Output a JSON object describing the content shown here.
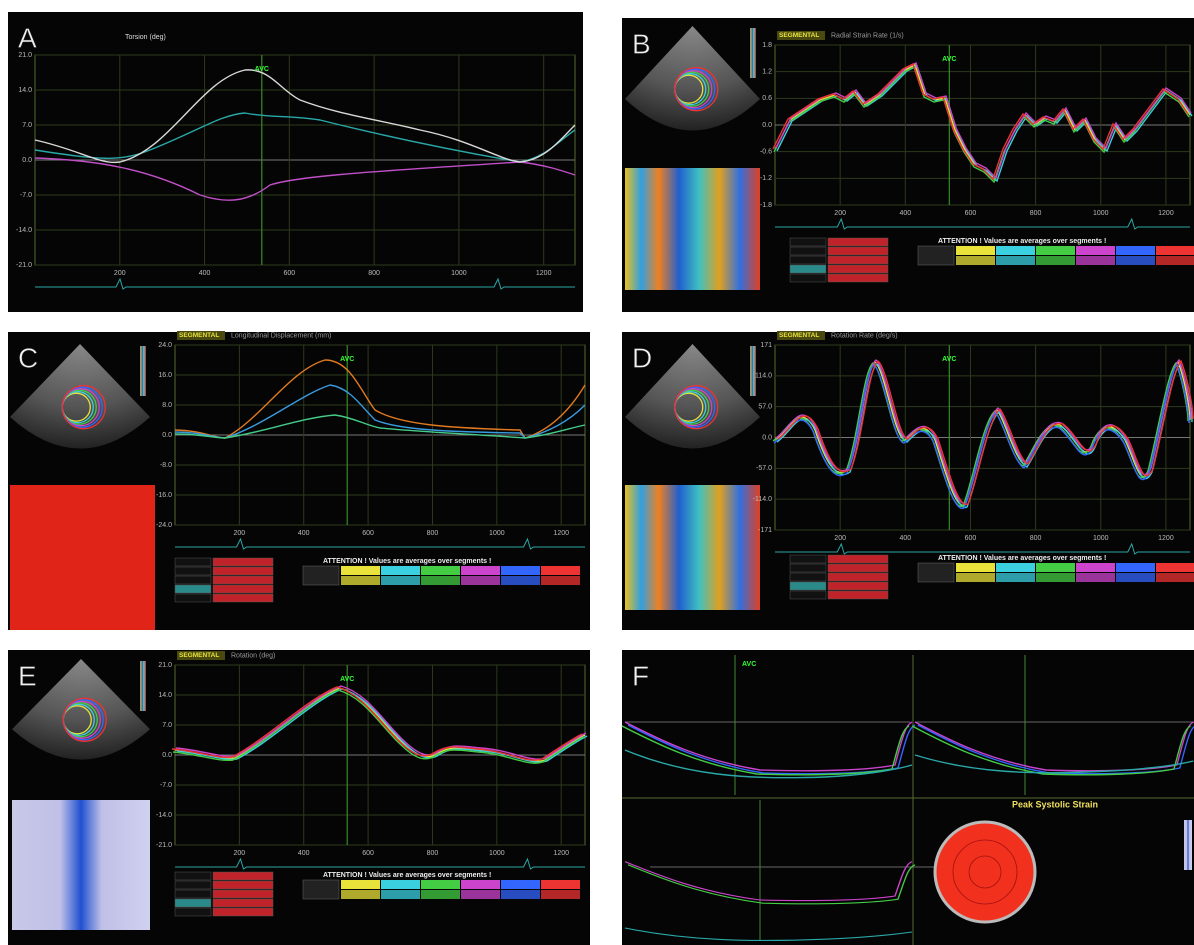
{
  "panels": [
    {
      "letter": "A",
      "title": "Torsion (deg)",
      "marker": "AVC",
      "yticks": [
        "21.0",
        "14.0",
        "7.0",
        "0.0",
        "-7.0",
        "-14.0",
        "-21.0"
      ],
      "xticks": [
        "200",
        "400",
        "600",
        "800",
        "1000",
        "1200"
      ]
    },
    {
      "letter": "B",
      "mode": "SEGMENTAL",
      "title": "Radial Strain Rate (1/s)",
      "marker": "AVC",
      "yticks": [
        "1.8",
        "1.2",
        "0.6",
        "0.0",
        "-0.6",
        "-1.2",
        "-1.8"
      ],
      "xticks": [
        "200",
        "400",
        "600",
        "800",
        "1000",
        "1200"
      ],
      "attention": "ATTENTION ! Values are averages over segments !"
    },
    {
      "letter": "C",
      "mode": "SEGMENTAL",
      "title": "Longitudinal Displacement (mm)",
      "marker": "AVC",
      "yticks": [
        "24.0",
        "16.0",
        "8.0",
        "0.0",
        "-8.0",
        "-16.0",
        "-24.0"
      ],
      "xticks": [
        "200",
        "400",
        "600",
        "800",
        "1000",
        "1200"
      ],
      "attention": "ATTENTION ! Values are averages over segments !"
    },
    {
      "letter": "D",
      "mode": "SEGMENTAL",
      "title": "Rotation Rate (deg/s)",
      "marker": "AVC",
      "yticks": [
        "171",
        "114.0",
        "57.0",
        "0.0",
        "-57.0",
        "-114.0",
        "-171"
      ],
      "xticks": [
        "200",
        "400",
        "600",
        "800",
        "1000",
        "1200"
      ],
      "attention": "ATTENTION ! Values are averages over segments !"
    },
    {
      "letter": "E",
      "mode": "SEGMENTAL",
      "title": "Rotation (deg)",
      "marker": "AVC",
      "yticks": [
        "21.0",
        "14.0",
        "7.0",
        "0.0",
        "-7.0",
        "-14.0",
        "-21.0"
      ],
      "xticks": [
        "200",
        "400",
        "600",
        "800",
        "1000",
        "1200"
      ],
      "attention": "ATTENTION ! Values are averages over segments !"
    },
    {
      "letter": "F",
      "title": "Peak Systolic Strain",
      "marker": "AVC"
    }
  ]
}
